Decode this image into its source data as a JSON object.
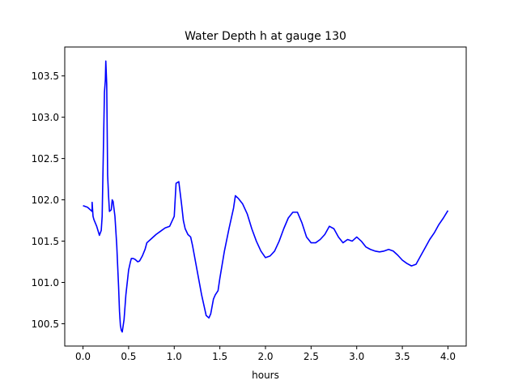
{
  "chart_data": {
    "type": "line",
    "title": "Water Depth h at gauge 130",
    "xlabel": "hours",
    "ylabel": "",
    "xlim": [
      -0.2,
      4.2
    ],
    "ylim": [
      100.23,
      103.85
    ],
    "xticks": [
      0.0,
      0.5,
      1.0,
      1.5,
      2.0,
      2.5,
      3.0,
      3.5,
      4.0
    ],
    "xtick_labels": [
      "0.0",
      "0.5",
      "1.0",
      "1.5",
      "2.0",
      "2.5",
      "3.0",
      "3.5",
      "4.0"
    ],
    "yticks": [
      100.5,
      101.0,
      101.5,
      102.0,
      102.5,
      103.0,
      103.5
    ],
    "ytick_labels": [
      "100.5",
      "101.0",
      "101.5",
      "102.0",
      "102.5",
      "103.0",
      "103.5"
    ],
    "grid": false,
    "series": [
      {
        "color": "#0000ff",
        "x": [
          0.0,
          0.05,
          0.1,
          0.1,
          0.11,
          0.12,
          0.15,
          0.18,
          0.2,
          0.21,
          0.22,
          0.235,
          0.245,
          0.25,
          0.26,
          0.265,
          0.27,
          0.28,
          0.29,
          0.3,
          0.31,
          0.32,
          0.33,
          0.35,
          0.37,
          0.38,
          0.39,
          0.4,
          0.41,
          0.42,
          0.43,
          0.45,
          0.47,
          0.48,
          0.49,
          0.5,
          0.51,
          0.52,
          0.53,
          0.55,
          0.57,
          0.58,
          0.6,
          0.62,
          0.63,
          0.65,
          0.68,
          0.7,
          0.75,
          0.8,
          0.85,
          0.9,
          0.95,
          1.0,
          1.02,
          1.05,
          1.08,
          1.1,
          1.12,
          1.15,
          1.18,
          1.2,
          1.25,
          1.3,
          1.35,
          1.38,
          1.4,
          1.43,
          1.45,
          1.48,
          1.5,
          1.55,
          1.6,
          1.65,
          1.67,
          1.7,
          1.75,
          1.8,
          1.85,
          1.9,
          1.95,
          2.0,
          2.05,
          2.1,
          2.15,
          2.2,
          2.25,
          2.3,
          2.35,
          2.4,
          2.45,
          2.5,
          2.55,
          2.6,
          2.65,
          2.7,
          2.75,
          2.8,
          2.85,
          2.9,
          2.95,
          3.0,
          3.05,
          3.1,
          3.15,
          3.2,
          3.25,
          3.3,
          3.35,
          3.4,
          3.45,
          3.5,
          3.55,
          3.6,
          3.65,
          3.7,
          3.75,
          3.8,
          3.85,
          3.9,
          3.95,
          4.0
        ],
        "y": [
          101.93,
          101.91,
          101.86,
          101.97,
          101.8,
          101.76,
          101.68,
          101.57,
          101.63,
          101.8,
          102.4,
          103.3,
          103.45,
          103.68,
          103.4,
          102.85,
          102.3,
          102.05,
          101.86,
          101.87,
          101.88,
          102.0,
          101.98,
          101.8,
          101.45,
          101.2,
          100.95,
          100.65,
          100.48,
          100.42,
          100.4,
          100.55,
          100.85,
          100.95,
          101.05,
          101.15,
          101.2,
          101.25,
          101.29,
          101.29,
          101.28,
          101.27,
          101.25,
          101.26,
          101.28,
          101.32,
          101.4,
          101.48,
          101.53,
          101.58,
          101.62,
          101.66,
          101.68,
          101.8,
          102.2,
          102.22,
          101.95,
          101.75,
          101.65,
          101.58,
          101.55,
          101.45,
          101.15,
          100.85,
          100.6,
          100.57,
          100.62,
          100.8,
          100.85,
          100.9,
          101.05,
          101.38,
          101.65,
          101.9,
          102.05,
          102.02,
          101.95,
          101.83,
          101.65,
          101.5,
          101.38,
          101.3,
          101.32,
          101.38,
          101.5,
          101.65,
          101.78,
          101.85,
          101.85,
          101.72,
          101.55,
          101.48,
          101.48,
          101.52,
          101.58,
          101.68,
          101.65,
          101.55,
          101.48,
          101.52,
          101.5,
          101.55,
          101.5,
          101.43,
          101.4,
          101.38,
          101.37,
          101.38,
          101.4,
          101.38,
          101.33,
          101.27,
          101.23,
          101.2,
          101.22,
          101.32,
          101.42,
          101.52,
          101.6,
          101.7,
          101.78,
          101.87
        ]
      }
    ]
  }
}
